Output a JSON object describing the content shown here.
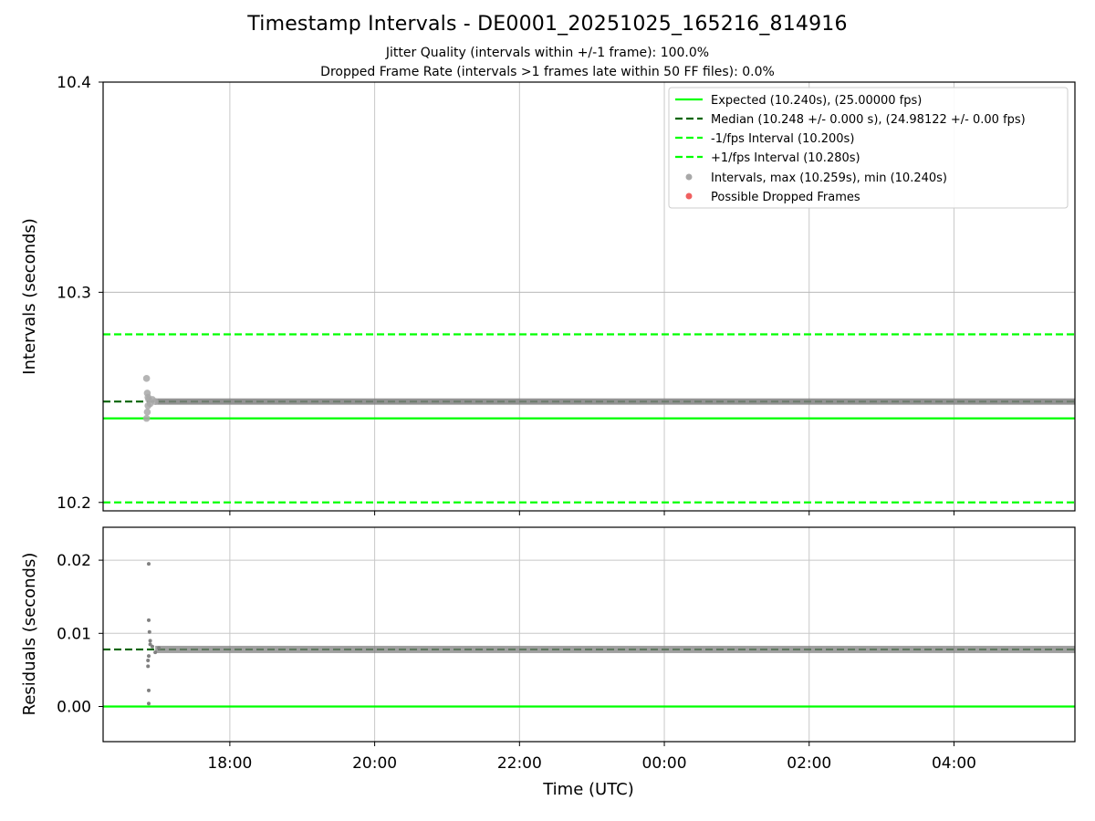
{
  "chart_data": [
    {
      "type": "scatter",
      "panel": "intervals",
      "title": "Timestamp Intervals - DE0001_20251025_165216_814916",
      "subtitle_lines": [
        "Jitter Quality (intervals within +/-1 frame): 100.0%",
        "Dropped Frame Rate (intervals >1 frames late within 50 FF files): 0.0%"
      ],
      "ylabel": "Intervals (seconds)",
      "ylim": [
        10.196,
        10.4
      ],
      "yticks": [
        "10.2",
        "10.3",
        "10.4"
      ],
      "ytick_values": [
        10.2,
        10.3,
        10.4
      ],
      "lines": [
        {
          "name": "Expected (10.240s), (25.00000 fps)",
          "y": 10.24,
          "style": "solid",
          "color": "#00ff00"
        },
        {
          "name": "Median (10.248 +/- 0.000 s), (24.98122 +/- 0.00 fps)",
          "y": 10.248,
          "style": "dashed",
          "color": "#006400"
        },
        {
          "name": "-1/fps Interval (10.200s)",
          "y": 10.2,
          "style": "dashed",
          "color": "#00ff00"
        },
        {
          "name": "+1/fps Interval (10.280s)",
          "y": 10.28,
          "style": "dashed",
          "color": "#00ff00"
        }
      ],
      "scatter_legend": [
        {
          "name": "Intervals, max (10.259s), min (10.240s)",
          "color": "#a0a0a0"
        },
        {
          "name": "Possible Dropped Frames",
          "color": "#f06060"
        }
      ],
      "points": [
        {
          "t": 16.85,
          "y": 10.259
        },
        {
          "t": 16.86,
          "y": 10.252
        },
        {
          "t": 16.87,
          "y": 10.25
        },
        {
          "t": 16.87,
          "y": 10.246
        },
        {
          "t": 16.86,
          "y": 10.243
        },
        {
          "t": 16.85,
          "y": 10.24
        },
        {
          "t": 16.88,
          "y": 10.249
        },
        {
          "t": 16.9,
          "y": 10.247
        },
        {
          "t": 16.93,
          "y": 10.249
        },
        {
          "t": 16.97,
          "y": 10.248
        }
      ]
    },
    {
      "type": "scatter",
      "panel": "residuals",
      "xlabel": "Time (UTC)",
      "ylabel": "Residuals (seconds)",
      "xlim": [
        16.25,
        29.67
      ],
      "xticks": [
        "18:00",
        "20:00",
        "22:00",
        "00:00",
        "02:00",
        "04:00"
      ],
      "xtick_values": [
        18,
        20,
        22,
        24,
        26,
        28
      ],
      "ylim": [
        -0.0048,
        0.0245
      ],
      "yticks": [
        "0.00",
        "0.01",
        "0.02"
      ],
      "ytick_values": [
        0.0,
        0.01,
        0.02
      ],
      "lines": [
        {
          "name": "expected-residual",
          "y": 0.0,
          "style": "solid",
          "color": "#00ff00"
        },
        {
          "name": "median-residual",
          "y": 0.0078,
          "style": "dashed",
          "color": "#006400"
        }
      ],
      "points": [
        {
          "t": 16.88,
          "y": 0.0195
        },
        {
          "t": 16.88,
          "y": 0.0118
        },
        {
          "t": 16.89,
          "y": 0.0102
        },
        {
          "t": 16.9,
          "y": 0.009
        },
        {
          "t": 16.9,
          "y": 0.0085
        },
        {
          "t": 16.88,
          "y": 0.0069
        },
        {
          "t": 16.87,
          "y": 0.0063
        },
        {
          "t": 16.87,
          "y": 0.0055
        },
        {
          "t": 16.88,
          "y": 0.0022
        },
        {
          "t": 16.88,
          "y": 0.0004
        },
        {
          "t": 16.93,
          "y": 0.0082
        },
        {
          "t": 16.97,
          "y": 0.0074
        },
        {
          "t": 17.02,
          "y": 0.008
        }
      ]
    }
  ],
  "colors": {
    "expected": "#00ff00",
    "median": "#006400",
    "points": "#808080",
    "points_light": "#a8a8a8",
    "dropped": "#f06060",
    "grid": "#c8c8c8"
  }
}
